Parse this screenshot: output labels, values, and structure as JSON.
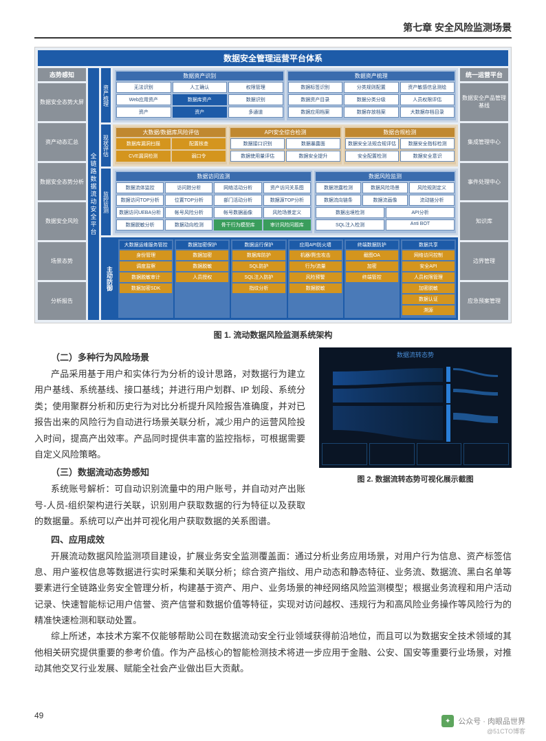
{
  "header": "第七章  安全风险监测场景",
  "diagram": {
    "title": "数据安全管理运营平台体系",
    "left_side": {
      "title": "态势感知",
      "items": [
        "数据安全态势大屏",
        "资产动态汇总",
        "数据安全态势分析",
        "数据安全风险",
        "场景态势",
        "分析报告"
      ]
    },
    "right_side": {
      "title": "统一运营平台",
      "items": [
        "数据安全产品管理 基线",
        "集成管理中心",
        "事件处理中心",
        "知识库",
        "边界管理",
        "应急预案管理"
      ]
    },
    "pillar_main": "全链路数据流动安全平台",
    "pillar_secs": [
      "资产梳理",
      "现状评估",
      "监控监测"
    ],
    "top_row": {
      "left": {
        "title": "数据资产识别",
        "rows": [
          [
            "无法识别",
            "人工确认",
            "权限管理"
          ],
          [
            "Web应用资产",
            "数据库资产",
            "数据识别"
          ],
          [
            "资产",
            "资产",
            "多通道"
          ]
        ]
      },
      "right": {
        "title": "数据资产梳理",
        "rows": [
          [
            "数据标签识别",
            "分类规则配置",
            "资产敏感信息测绘"
          ],
          [
            "数据资产目录",
            "数据分类分级",
            "人员权限评估"
          ],
          [
            "数据应用档案",
            "数据存放档案",
            "大数据存档目录"
          ]
        ]
      }
    },
    "mid_row": {
      "panels": [
        {
          "title": "大数据/数据库风险评估",
          "rows": [
            [
              "数据库漏洞扫描",
              "配置核查"
            ],
            [
              "CVE漏洞检测",
              "弱口令"
            ]
          ]
        },
        {
          "title": "API安全综合检测",
          "rows": [
            [
              "数据接口识别",
              "数据暴露面"
            ],
            [
              "数据使用量评估",
              "数据安全提升"
            ]
          ]
        },
        {
          "title": "数据合规检测",
          "rows": [
            [
              "数据安全法规合规评估",
              "数据安全指标检测"
            ],
            [
              "安全配置检测",
              "数据安全意识"
            ]
          ]
        }
      ]
    },
    "monitor_row": {
      "left": {
        "title": "数据访问监测",
        "rows": [
          [
            "数据流体监控",
            "访问踪分析",
            "网络活动分析",
            "资产访问关系图"
          ],
          [
            "数据访问TOP分析",
            "位置TOP分析",
            "部门活动分析",
            "数据源TOP分析"
          ],
          [
            "数据访问UEBA分析",
            "帐号风险分析",
            "帐号数据画像",
            "风险场景定义"
          ],
          [
            "数据脱敏分析",
            "数据动向检测"
          ]
        ],
        "green": [
          "骨干行为模型库",
          "审计风险问题库"
        ]
      },
      "right": {
        "title": "数据风险监测",
        "rows": [
          [
            "数据泄露检测",
            "数据风险场景",
            "风险规则定义"
          ],
          [
            "数据流向链条",
            "数据流画像",
            "流动链分析"
          ],
          [
            "数据出境检测",
            "API分析"
          ],
          [
            "SQL注入检测",
            "Anti BOT"
          ]
        ]
      }
    },
    "bottom": {
      "label": "主动防御",
      "panels": [
        {
          "title": "大数据运维服务管控",
          "items": [
            "身份管理",
            "调度监察",
            "数据脱敏审计",
            "数据加密SDK"
          ]
        },
        {
          "title": "数据加密保护",
          "items": [
            "数据加密",
            "数据脱敏",
            "人员授权"
          ]
        },
        {
          "title": "数据运行保护",
          "items": [
            "数据库防护",
            "SQL防护",
            "SQL注入防护",
            "指纹分析"
          ]
        },
        {
          "title": "应用API防火墙",
          "items": [
            "机器/爬虫攻击",
            "行为/流量",
            "风险预警",
            "数据脱敏"
          ]
        },
        {
          "title": "终端数据防护",
          "items": [
            "截图OA",
            "加密",
            "终端管控"
          ]
        },
        {
          "title": "数据共享",
          "items": [
            "网络访问控制",
            "安全API",
            "人员权限管理",
            "加密脱敏",
            "数据认证",
            "溯源"
          ]
        }
      ]
    }
  },
  "caption1": "图  1.  流动数据风险监测系统架构",
  "sec2_title": "（二）多种行为风险场景",
  "para1": "产品采用基于用户和实体行为分析的设计思路，对数据行为建立用户基线、系统基线、接口基线；并进行用户划群、IP 划段、系统分类；使用聚群分析和历史行为对比分析提升风险报告准确度，并对已报告出来的风险行为自动进行场景关联分析，减少用户的运营风险投入时间，提高产出效率。产品同时提供丰富的监控指标，可根据需要自定义风险策略。",
  "sec3_title": "（三）数据流动态势感知",
  "para2a": "系统账号解析：可自动识别流量中的用户账号，并自动对产出账号-人员-组织架构进行关联，识别用户获取数据的行为特征以及获取的数据量。系统可以产出并可视化用户获取数据的关系图谱。",
  "caption2": "图  2.  数据流转态势可视化展示截图",
  "screenshot_title": "数据流转态势",
  "sec4_title": "四、应用成效",
  "para3": "开展流动数据风险监测项目建设，扩展业务安全监测覆盖面：通过分析业务应用场景，对用户行为信息、资产标签信息、用户鉴权信息等数据进行实时采集和关联分析；综合资产指纹、用户动态和静态特征、业务流、数据流、黑白名单等要素进行全链路业务安全管理分析，构建基于资产、用户、业务场景的神经网络风险监测模型；根据业务流程和用户活动记录、快速智能标记用户信誉、资产信誉和数据价值等特征，实现对访问越权、违规行为和高风险业务操作等风险行为的精准快速检测和联动处置。",
  "para4": "综上所述，本技术方案不仅能够帮助公司在数据流动安全行业领域获得前沿地位，而且可以为数据安全技术领域的其他相关研究提供重要的参考价值。作为产品核心的智能检测技术将进一步应用于金融、公安、国安等重要行业场景，对推动其他交叉行业发展、赋能全社会产业做出巨大贡献。",
  "page_num": "49",
  "watermark": "公众号 · 肉眼品世界",
  "watermark_sub": "@51CTO博客"
}
